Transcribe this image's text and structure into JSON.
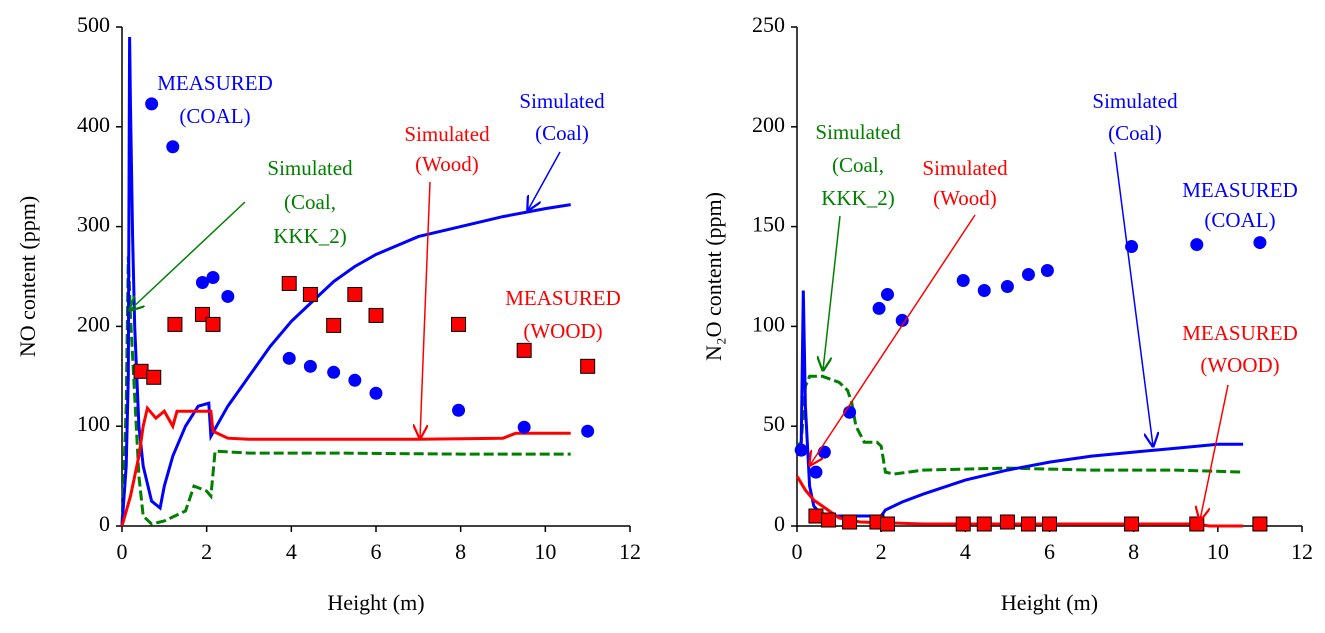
{
  "chart_data": [
    {
      "type": "line",
      "x_label": "Height (m)",
      "y_label": "NO content (ppm)",
      "xlim": [
        0,
        12
      ],
      "xticks": [
        0,
        2,
        4,
        6,
        8,
        10,
        12
      ],
      "ylim": [
        0,
        500
      ],
      "yticks": [
        0,
        100,
        200,
        300,
        400,
        500
      ],
      "annotations": [
        {
          "lines": [
            "MEASURED",
            "(COAL)"
          ],
          "color": "#0000ff"
        },
        {
          "lines": [
            "Simulated",
            "(Coal)"
          ],
          "color": "#0000ff"
        },
        {
          "lines": [
            "Simulated",
            "(Wood)"
          ],
          "color": "#ff0000"
        },
        {
          "lines": [
            "Simulated",
            "(Coal,",
            "KKK_2)"
          ],
          "color": "#008000"
        },
        {
          "lines": [
            "MEASURED",
            "(WOOD)"
          ],
          "color": "#ff0000"
        }
      ],
      "series": [
        {
          "type": "line",
          "color": "#008000",
          "dash": true,
          "x": [
            0,
            0.1,
            0.15,
            0.2,
            0.3,
            0.4,
            0.5,
            0.7,
            1.0,
            1.5,
            1.7,
            2.0,
            2.1,
            2.2,
            3,
            5,
            8,
            10.6
          ],
          "values": [
            0,
            120,
            270,
            210,
            130,
            50,
            10,
            2,
            5,
            15,
            40,
            35,
            30,
            75,
            73,
            73,
            72,
            72
          ]
        },
        {
          "type": "line",
          "color": "#0000ff",
          "x": [
            0,
            0.1,
            0.15,
            0.18,
            0.2,
            0.25,
            0.3,
            0.4,
            0.5,
            0.7,
            0.9,
            1.0,
            1.2,
            1.5,
            1.8,
            2.05,
            2.1,
            2.5,
            3,
            3.5,
            4,
            4.5,
            5,
            5.5,
            6,
            7,
            8,
            9,
            10,
            10.6
          ],
          "values": [
            0,
            60,
            150,
            490,
            420,
            290,
            200,
            100,
            60,
            25,
            18,
            40,
            70,
            100,
            120,
            123,
            90,
            120,
            150,
            180,
            205,
            225,
            245,
            260,
            272,
            290,
            300,
            310,
            318,
            322
          ]
        },
        {
          "type": "line",
          "color": "#ff0000",
          "x": [
            0,
            0.2,
            0.4,
            0.5,
            0.6,
            0.8,
            1.0,
            1.2,
            1.3,
            2.1,
            2.15,
            2.5,
            3,
            5,
            7,
            9,
            9.3,
            10.6
          ],
          "values": [
            0,
            30,
            70,
            100,
            118,
            108,
            115,
            100,
            115,
            115,
            95,
            88,
            87,
            87,
            87,
            88,
            93,
            93
          ]
        },
        {
          "type": "scatter",
          "marker": "circle",
          "color": "#0000ff",
          "x": [
            0.7,
            1.2,
            1.9,
            2.15,
            2.5,
            3.95,
            4.45,
            5,
            5.5,
            6,
            7.95,
            9.5,
            11
          ],
          "values": [
            423,
            380,
            244,
            249,
            230,
            168,
            160,
            154,
            146,
            133,
            116,
            99,
            95
          ]
        },
        {
          "type": "scatter",
          "marker": "square",
          "color": "#ff0000",
          "x": [
            0.45,
            0.75,
            1.25,
            1.9,
            2.15,
            3.95,
            4.45,
            5,
            5.5,
            6,
            7.95,
            9.5,
            11
          ],
          "values": [
            155,
            149,
            202,
            212,
            202,
            243,
            232,
            201,
            232,
            211,
            202,
            176,
            160
          ]
        }
      ]
    },
    {
      "type": "line",
      "x_label": "Height (m)",
      "y_label": "N₂O content (ppm)",
      "xlim": [
        0,
        12
      ],
      "xticks": [
        0,
        2,
        4,
        6,
        8,
        10,
        12
      ],
      "ylim": [
        0,
        250
      ],
      "yticks": [
        0,
        50,
        100,
        150,
        200,
        250
      ],
      "annotations": [
        {
          "lines": [
            "Simulated",
            "(Coal)"
          ],
          "color": "#0000ff"
        },
        {
          "lines": [
            "MEASURED",
            "(COAL)"
          ],
          "color": "#0000ff"
        },
        {
          "lines": [
            "Simulated",
            "(Coal,",
            "KKK_2)"
          ],
          "color": "#008000"
        },
        {
          "lines": [
            "Simulated",
            "(Wood)"
          ],
          "color": "#ff0000"
        },
        {
          "lines": [
            "MEASURED",
            "(WOOD)"
          ],
          "color": "#ff0000"
        }
      ],
      "series": [
        {
          "type": "line",
          "color": "#008000",
          "dash": true,
          "x": [
            0,
            0.1,
            0.2,
            0.3,
            0.6,
            1.0,
            1.2,
            1.3,
            1.4,
            1.6,
            1.9,
            2.0,
            2.1,
            2.3,
            3,
            5,
            7,
            9,
            10.6
          ],
          "values": [
            40,
            42,
            70,
            75,
            75,
            72,
            68,
            62,
            50,
            42,
            42,
            40,
            27,
            26,
            28,
            29,
            28,
            28,
            27
          ]
        },
        {
          "type": "line",
          "color": "#0000ff",
          "x": [
            0,
            0.1,
            0.15,
            0.2,
            0.3,
            0.4,
            0.6,
            1,
            2,
            2.1,
            2.5,
            3,
            4,
            5,
            6,
            7,
            8,
            9,
            10,
            10.6
          ],
          "values": [
            40,
            40,
            118,
            60,
            20,
            10,
            5,
            5,
            5,
            8,
            12,
            16,
            23,
            28,
            32,
            35,
            37,
            39,
            41,
            41
          ]
        },
        {
          "type": "line",
          "color": "#ff0000",
          "x": [
            0,
            0.2,
            0.4,
            0.6,
            0.8,
            1,
            1.5,
            3,
            9.5,
            9.8,
            10.6
          ],
          "values": [
            25,
            18,
            13,
            10,
            7,
            4,
            2,
            1,
            1,
            0,
            0
          ]
        },
        {
          "type": "scatter",
          "marker": "circle",
          "color": "#0000ff",
          "x": [
            0.1,
            0.45,
            0.65,
            1.25,
            1.95,
            2.15,
            2.5,
            3.95,
            4.45,
            5,
            5.5,
            5.95,
            7.95,
            9.5,
            11
          ],
          "values": [
            38,
            27,
            37,
            57,
            109,
            116,
            103,
            123,
            118,
            120,
            126,
            128,
            140,
            141,
            142
          ]
        },
        {
          "type": "scatter",
          "marker": "square",
          "color": "#ff0000",
          "x": [
            0.45,
            0.75,
            1.25,
            1.9,
            2.15,
            3.95,
            4.45,
            5,
            5.5,
            6,
            7.95,
            9.5,
            11
          ],
          "values": [
            5,
            3,
            2,
            2,
            1,
            1,
            1,
            2,
            1,
            1,
            1,
            1,
            1
          ]
        }
      ]
    }
  ]
}
